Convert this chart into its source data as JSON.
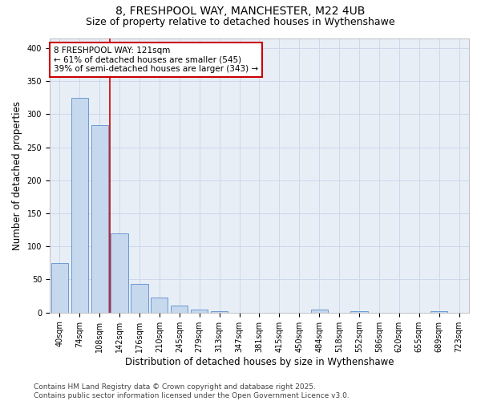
{
  "title_line1": "8, FRESHPOOL WAY, MANCHESTER, M22 4UB",
  "title_line2": "Size of property relative to detached houses in Wythenshawe",
  "xlabel": "Distribution of detached houses by size in Wythenshawe",
  "ylabel": "Number of detached properties",
  "categories": [
    "40sqm",
    "74sqm",
    "108sqm",
    "142sqm",
    "176sqm",
    "210sqm",
    "245sqm",
    "279sqm",
    "313sqm",
    "347sqm",
    "381sqm",
    "415sqm",
    "450sqm",
    "484sqm",
    "518sqm",
    "552sqm",
    "586sqm",
    "620sqm",
    "655sqm",
    "689sqm",
    "723sqm"
  ],
  "values": [
    75,
    325,
    283,
    120,
    43,
    23,
    11,
    4,
    2,
    0,
    0,
    0,
    0,
    5,
    0,
    2,
    0,
    0,
    0,
    2,
    0
  ],
  "bar_color": "#c5d8ee",
  "bar_edge_color": "#5b8fcc",
  "vline_x": 2.5,
  "vline_color": "#cc0000",
  "annotation_text": "8 FRESHPOOL WAY: 121sqm\n← 61% of detached houses are smaller (545)\n39% of semi-detached houses are larger (343) →",
  "annotation_box_color": "#ffffff",
  "annotation_box_edge_color": "#cc0000",
  "ylim": [
    0,
    415
  ],
  "yticks": [
    0,
    50,
    100,
    150,
    200,
    250,
    300,
    350,
    400
  ],
  "grid_color": "#c8d4e8",
  "background_color": "#e8eef6",
  "footer_text": "Contains HM Land Registry data © Crown copyright and database right 2025.\nContains public sector information licensed under the Open Government Licence v3.0.",
  "title_fontsize": 10,
  "subtitle_fontsize": 9,
  "axis_label_fontsize": 8.5,
  "tick_fontsize": 7,
  "annotation_fontsize": 7.5,
  "footer_fontsize": 6.5
}
